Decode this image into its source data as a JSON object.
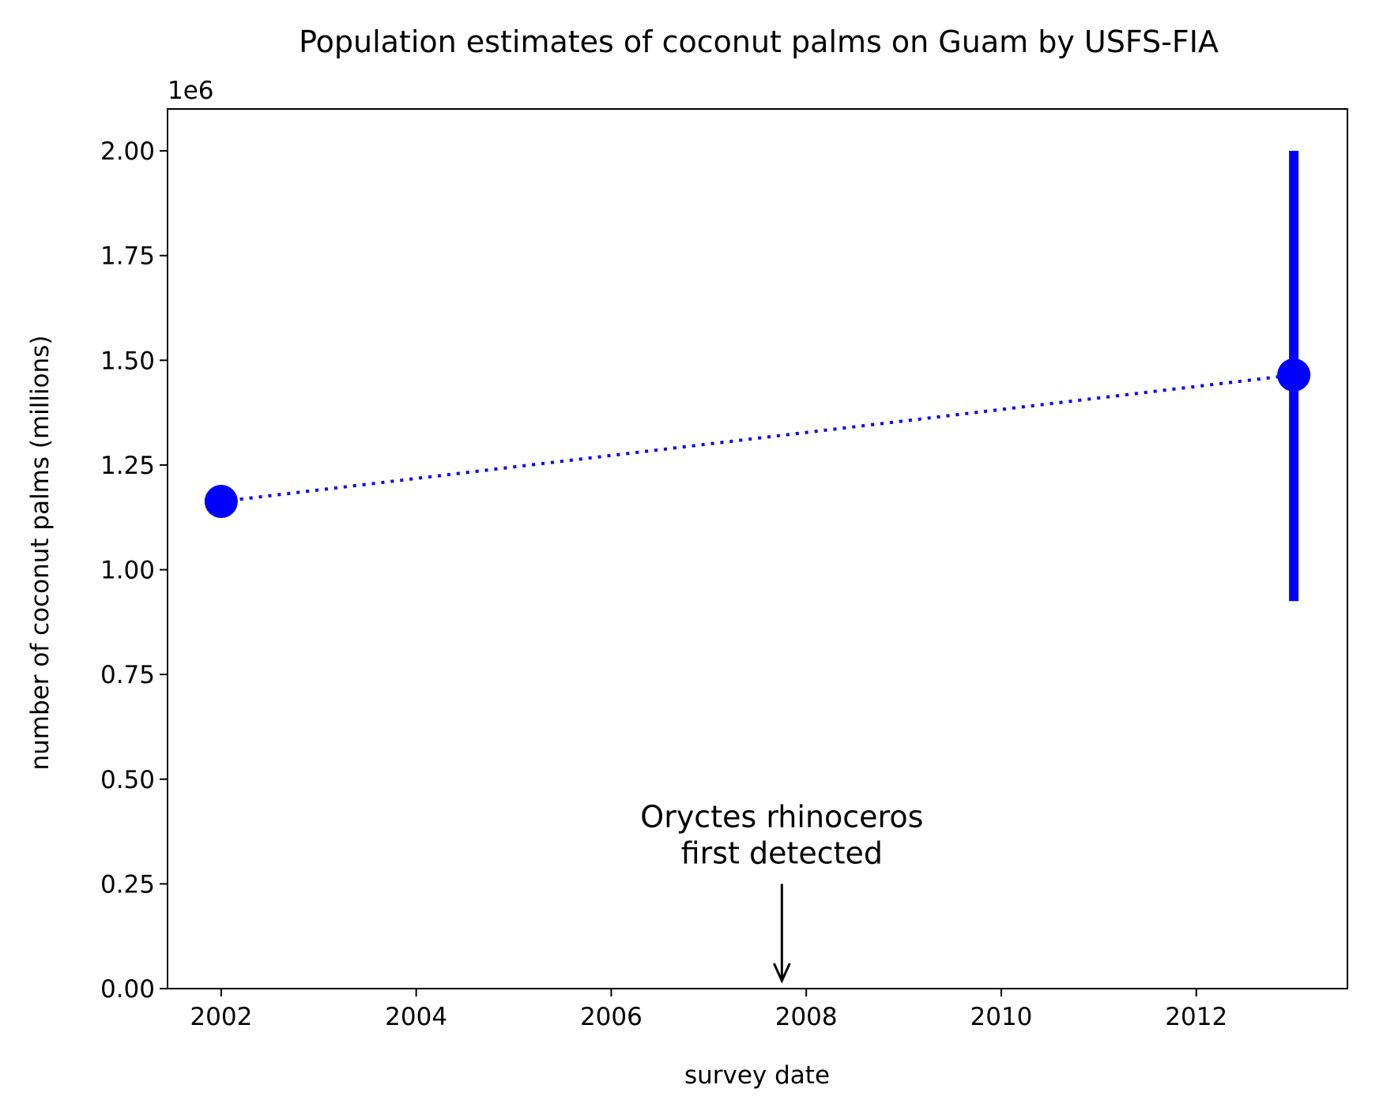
{
  "chart_data": {
    "type": "line",
    "title": "Population estimates of coconut palms on Guam by USFS-FIA",
    "xlabel": "survey date",
    "ylabel": "number of coconut palms (millions)",
    "y_offset_label": "1e6",
    "xlim": [
      2001.45,
      2013.55
    ],
    "ylim": [
      0,
      2100000
    ],
    "xticks": [
      2002,
      2004,
      2006,
      2008,
      2010,
      2012
    ],
    "xtick_labels": [
      "2002",
      "2004",
      "2006",
      "2008",
      "2010",
      "2012"
    ],
    "yticks": [
      0,
      250000,
      500000,
      750000,
      1000000,
      1250000,
      1500000,
      1750000,
      2000000
    ],
    "ytick_labels": [
      "0.00",
      "0.25",
      "0.50",
      "0.75",
      "1.00",
      "1.25",
      "1.50",
      "1.75",
      "2.00"
    ],
    "grid": false,
    "series": [
      {
        "color": "#0000ff",
        "line_style": "dotted",
        "marker": "circle",
        "points": [
          {
            "x": 2002.0,
            "y": 1163000
          },
          {
            "x": 2013.0,
            "y": 1465000,
            "error_low": 925000,
            "error_high": 2000000
          }
        ]
      }
    ],
    "annotations": [
      {
        "lines": [
          "Oryctes rhinoceros",
          "first detected"
        ],
        "x": 2007.75,
        "y": 0,
        "arrow_from_y": 250000
      }
    ]
  }
}
